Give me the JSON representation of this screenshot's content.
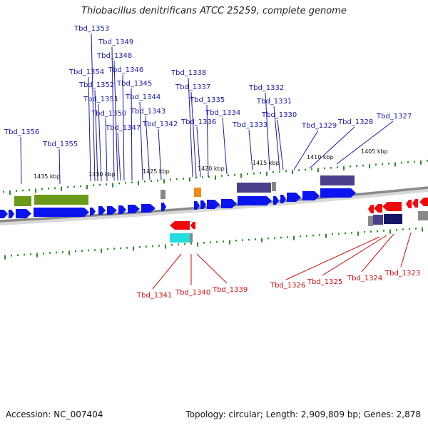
{
  "title": "Thiobacillus denitrificans ATCC 25259, complete genome",
  "footer": {
    "accession": "Accession: NC_007404",
    "stats": "Topology: circular; Length: 2,909,809 bp; Genes: 2,878"
  },
  "colors": {
    "forward_gene": "#0a14ee",
    "reverse_gene": "#ee0a0a",
    "forward_label": "#1a1aaa",
    "reverse_label": "#cc1111",
    "backbone": "#8a8a8a",
    "tick": "#2e8b2e",
    "cog_purple": "#4a3f8a",
    "cog_olive": "#6a9a1a",
    "cog_orange": "#f08a1a",
    "cog_cyan": "#22dddd",
    "cog_navy": "#141468",
    "cog_grey": "#888888"
  },
  "scale_labels": [
    "1435 kbp",
    "1430 kbp",
    "1425 kbp",
    "1420 kbp",
    "1415 kbp",
    "1410 kbp",
    "1405 kbp"
  ],
  "forward_genes": [
    "Tbd_1356",
    "Tbd_1355",
    "Tbd_1354",
    "Tbd_1353",
    "Tbd_1352",
    "Tbd_1351",
    "Tbd_1350",
    "Tbd_1349",
    "Tbd_1348",
    "Tbd_1347",
    "Tbd_1346",
    "Tbd_1345",
    "Tbd_1344",
    "Tbd_1343",
    "Tbd_1342",
    "Tbd_1338",
    "Tbd_1337",
    "Tbd_1336",
    "Tbd_1335",
    "Tbd_1334",
    "Tbd_1333",
    "Tbd_1332",
    "Tbd_1331",
    "Tbd_1330",
    "Tbd_1329",
    "Tbd_1328",
    "Tbd_1327"
  ],
  "reverse_genes": [
    "Tbd_1341",
    "Tbd_1340",
    "Tbd_1339",
    "Tbd_1326",
    "Tbd_1325",
    "Tbd_1324",
    "Tbd_1323"
  ]
}
